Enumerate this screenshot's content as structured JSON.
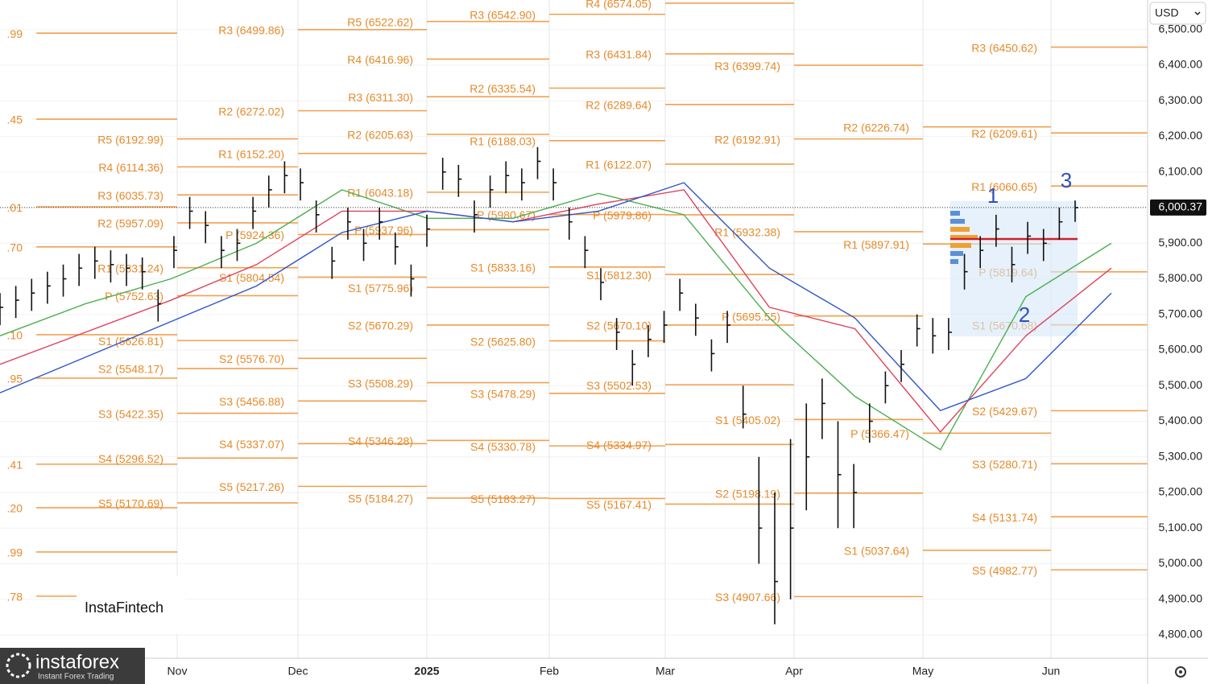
{
  "header": {
    "currency": "USD"
  },
  "logos": {
    "fintech": "InstaFintech",
    "brand": "instaforex",
    "tagline": "Instant Forex Trading"
  },
  "annotations": [
    "1",
    "2",
    "3"
  ],
  "chart_data": {
    "type": "ohlc",
    "x_labels": [
      "Nov",
      "Dec",
      "2025",
      "Feb",
      "Mar",
      "Apr",
      "May",
      "Jun"
    ],
    "ylim": [
      4734.5,
      6583
    ],
    "yticks": [
      {
        "value": 6500,
        "label": "6,500.00"
      },
      {
        "value": 6400,
        "label": "6,400.00"
      },
      {
        "value": 6300,
        "label": "6,300.00"
      },
      {
        "value": 6200,
        "label": "6,200.00"
      },
      {
        "value": 6100,
        "label": "6,100.00"
      },
      {
        "value": 6000,
        "label": "6,000.00"
      },
      {
        "value": 5900,
        "label": "5,900.00"
      },
      {
        "value": 5800,
        "label": "5,800.00"
      },
      {
        "value": 5700,
        "label": "5,700.00"
      },
      {
        "value": 5600,
        "label": "5,600.00"
      },
      {
        "value": 5500,
        "label": "5,500.00"
      },
      {
        "value": 5400,
        "label": "5,400.00"
      },
      {
        "value": 5300,
        "label": "5,300.00"
      },
      {
        "value": 5200,
        "label": "5,200.00"
      },
      {
        "value": 5100,
        "label": "5,100.00"
      },
      {
        "value": 5000,
        "label": "5,000.00"
      },
      {
        "value": 4900,
        "label": "4,900.00"
      },
      {
        "value": 4800,
        "label": "4,800.00"
      }
    ],
    "last_price": {
      "value": 6000.37,
      "label": "6,000.37"
    },
    "bar_color": "#111111",
    "high": [
      5760,
      5780,
      5800,
      5820,
      5840,
      5870,
      5890,
      5880,
      5870,
      5860,
      5770,
      5920,
      6030,
      5990,
      5920,
      5940,
      6030,
      6090,
      6130,
      6110,
      6020,
      5890,
      6000,
      5940,
      6000,
      5930,
      5840,
      5980,
      6140,
      6120,
      6020,
      6090,
      6130,
      6110,
      6170,
      6110,
      6000,
      5920,
      5830,
      5690,
      5600,
      5670,
      5710,
      5800,
      5730,
      5630,
      5710,
      5500,
      5300,
      5200,
      5350,
      5450,
      5520,
      5400,
      5280,
      5450,
      5540,
      5600,
      5700,
      5690,
      5690,
      5870,
      5920,
      5980,
      5890,
      5960,
      5940,
      6000,
      6020
    ],
    "low": [
      5670,
      5690,
      5710,
      5730,
      5750,
      5780,
      5800,
      5790,
      5780,
      5770,
      5680,
      5830,
      5940,
      5900,
      5830,
      5850,
      5940,
      6000,
      6040,
      6020,
      5930,
      5800,
      5910,
      5850,
      5910,
      5840,
      5750,
      5890,
      6050,
      6030,
      5930,
      6000,
      6040,
      6020,
      6080,
      6020,
      5910,
      5830,
      5740,
      5600,
      5500,
      5580,
      5620,
      5710,
      5640,
      5540,
      5620,
      5380,
      5000,
      4830,
      4900,
      5150,
      5350,
      5100,
      5100,
      5340,
      5450,
      5510,
      5610,
      5590,
      5600,
      5770,
      5830,
      5890,
      5790,
      5870,
      5850,
      5910,
      5960
    ],
    "close": [
      5720,
      5740,
      5760,
      5780,
      5800,
      5830,
      5850,
      5840,
      5830,
      5820,
      5730,
      5880,
      5990,
      5950,
      5880,
      5900,
      5990,
      6050,
      6090,
      6070,
      5980,
      5850,
      5960,
      5900,
      5960,
      5890,
      5800,
      5940,
      6100,
      6080,
      5980,
      6050,
      6090,
      6070,
      6130,
      6070,
      5960,
      5880,
      5790,
      5650,
      5560,
      5630,
      5670,
      5760,
      5690,
      5590,
      5670,
      5420,
      5100,
      4950,
      5100,
      5300,
      5450,
      5250,
      5200,
      5400,
      5500,
      5560,
      5660,
      5640,
      5650,
      5820,
      5880,
      5940,
      5840,
      5920,
      5900,
      5960,
      6000
    ],
    "series": [
      {
        "color": "#4caf50",
        "values": [
          5640,
          5730,
          5800,
          5900,
          6050,
          5970,
          5970,
          6040,
          5980,
          5690,
          5470,
          5320,
          5750,
          5900
        ]
      },
      {
        "color": "#e0405a",
        "values": [
          5560,
          5650,
          5740,
          5840,
          5990,
          5990,
          5960,
          6010,
          6050,
          5720,
          5660,
          5370,
          5640,
          5830
        ]
      },
      {
        "color": "#2f55c8",
        "values": [
          5480,
          5580,
          5680,
          5780,
          5930,
          5990,
          5960,
          5990,
          6070,
          5830,
          5690,
          5430,
          5520,
          5760
        ]
      }
    ],
    "pivot_color": "#f0a050",
    "pivots": [
      {
        "levels": [
          {
            "label": ".99",
            "value": 6489.99
          },
          {
            "label": ".45",
            "value": 6248.45
          },
          {
            "label": ".01",
            "value": 6002.01
          },
          {
            "label": ".70",
            "value": 5889.7
          },
          {
            "label": ".10",
            "value": 5643.1
          },
          {
            "label": ".95",
            "value": 5520.95
          },
          {
            "label": ".41",
            "value": 5279.41
          },
          {
            "label": ".20",
            "value": 5157.2
          },
          {
            "label": ".99",
            "value": 5032.99
          },
          {
            "label": ".78",
            "value": 4908.78
          }
        ]
      },
      {
        "levels": [
          {
            "label": "R5 (6192.99)",
            "value": 6192.99
          },
          {
            "label": "R4 (6114.36)",
            "value": 6114.36
          },
          {
            "label": "R3 (6035.73)",
            "value": 6035.73
          },
          {
            "label": "R2 (5957.09)",
            "value": 5957.09
          },
          {
            "label": "R1 (5831.24)",
            "value": 5831.24
          },
          {
            "label": "P (5752.63)",
            "value": 5752.63
          },
          {
            "label": "S1 (5626.81)",
            "value": 5626.81
          },
          {
            "label": "S2 (5548.17)",
            "value": 5548.17
          },
          {
            "label": "S3 (5422.35)",
            "value": 5422.35
          },
          {
            "label": "S4 (5296.52)",
            "value": 5296.52
          },
          {
            "label": "S5 (5170.69)",
            "value": 5170.69
          }
        ]
      },
      {
        "levels": [
          {
            "label": "R3 (6499.86)",
            "value": 6499.86
          },
          {
            "label": "R2 (6272.02)",
            "value": 6272.02
          },
          {
            "label": "R1 (6152.20)",
            "value": 6152.2
          },
          {
            "label": "P (5924.36)",
            "value": 5924.36
          },
          {
            "label": "S1 (5804.54)",
            "value": 5804.54
          },
          {
            "label": "S2 (5576.70)",
            "value": 5576.7
          },
          {
            "label": "S3 (5456.88)",
            "value": 5456.88
          },
          {
            "label": "S4 (5337.07)",
            "value": 5337.07
          },
          {
            "label": "S5 (5217.26)",
            "value": 5217.26
          }
        ]
      },
      {
        "levels": [
          {
            "label": "R5 (6522.62)",
            "value": 6522.62
          },
          {
            "label": "R4 (6416.96)",
            "value": 6416.96
          },
          {
            "label": "R3 (6311.30)",
            "value": 6311.3
          },
          {
            "label": "R2 (6205.63)",
            "value": 6205.63
          },
          {
            "label": "R1 (6043.18)",
            "value": 6043.18
          },
          {
            "label": "P (5937.96)",
            "value": 5937.96
          },
          {
            "label": "S1 (5775.96)",
            "value": 5775.96
          },
          {
            "label": "S2 (5670.29)",
            "value": 5670.29
          },
          {
            "label": "S3 (5508.29)",
            "value": 5508.29
          },
          {
            "label": "S4 (5346.28)",
            "value": 5346.28
          },
          {
            "label": "S5 (5184.27)",
            "value": 5184.27
          }
        ]
      },
      {
        "levels": [
          {
            "label": "R3 (6542.90)",
            "value": 6542.9
          },
          {
            "label": "R2 (6335.54)",
            "value": 6335.54
          },
          {
            "label": "R1 (6188.03)",
            "value": 6188.03
          },
          {
            "label": "P (5980.67)",
            "value": 5980.67
          },
          {
            "label": "S1 (5833.16)",
            "value": 5833.16
          },
          {
            "label": "S2 (5625.80)",
            "value": 5625.8
          },
          {
            "label": "S3 (5478.29)",
            "value": 5478.29
          },
          {
            "label": "S4 (5330.78)",
            "value": 5330.78
          },
          {
            "label": "S5 (5183.27)",
            "value": 5183.27
          }
        ]
      },
      {
        "levels": [
          {
            "label": "R4 (6574.05)",
            "value": 6574.05
          },
          {
            "label": "R3 (6431.84)",
            "value": 6431.84
          },
          {
            "label": "R2 (6289.64)",
            "value": 6289.64
          },
          {
            "label": "R1 (6122.07)",
            "value": 6122.07
          },
          {
            "label": "P (5979.86)",
            "value": 5979.86
          },
          {
            "label": "S1 (5812.30)",
            "value": 5812.3
          },
          {
            "label": "S2 (5670.10)",
            "value": 5670.1
          },
          {
            "label": "S3 (5502.53)",
            "value": 5502.53
          },
          {
            "label": "S4 (5334.97)",
            "value": 5334.97
          },
          {
            "label": "S5 (5167.41)",
            "value": 5167.41
          }
        ]
      },
      {
        "levels": [
          {
            "label": "R3 (6399.74)",
            "value": 6399.74
          },
          {
            "label": "R2 (6192.91)",
            "value": 6192.91
          },
          {
            "label": "R1 (5932.38)",
            "value": 5932.38
          },
          {
            "label": "P (5695.55)",
            "value": 5695.55
          },
          {
            "label": "S1 (5405.02)",
            "value": 5405.02
          },
          {
            "label": "S2 (5198.19)",
            "value": 5198.19
          },
          {
            "label": "S3 (4907.66)",
            "value": 4907.66
          }
        ]
      },
      {
        "levels": [
          {
            "label": "R2 (6226.74)",
            "value": 6226.74
          },
          {
            "label": "R1 (5897.91)",
            "value": 5897.91
          },
          {
            "label": "P (5366.47)",
            "value": 5366.47
          },
          {
            "label": "S1 (5037.64)",
            "value": 5037.64
          }
        ]
      },
      {
        "levels": [
          {
            "label": "R3 (6450.62)",
            "value": 6450.62
          },
          {
            "label": "R2 (6209.61)",
            "value": 6209.61
          },
          {
            "label": "R1 (6060.65)",
            "value": 6060.65
          },
          {
            "label": "P (5819.64)",
            "value": 5819.64
          },
          {
            "label": "S1 (5670.68)",
            "value": 5670.68
          },
          {
            "label": "S2 (5429.67)",
            "value": 5429.67
          },
          {
            "label": "S3 (5280.71)",
            "value": 5280.71
          },
          {
            "label": "S4 (5131.74)",
            "value": 5131.74
          },
          {
            "label": "S5 (4982.77)",
            "value": 4982.77
          }
        ]
      }
    ]
  }
}
